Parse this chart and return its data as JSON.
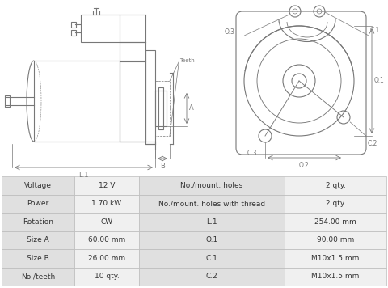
{
  "table_rows": [
    [
      "Voltage",
      "12 V",
      "No./mount. holes",
      "2 qty."
    ],
    [
      "Power",
      "1.70 kW",
      "No./mount. holes with thread",
      "2 qty."
    ],
    [
      "Rotation",
      "CW",
      "L.1",
      "254.00 mm"
    ],
    [
      "Size A",
      "60.00 mm",
      "O.1",
      "90.00 mm"
    ],
    [
      "Size B",
      "26.00 mm",
      "C.1",
      "M10x1.5 mm"
    ],
    [
      "No./teeth",
      "10 qty.",
      "C.2",
      "M10x1.5 mm"
    ]
  ],
  "table_bg_label": "#e0e0e0",
  "table_bg_value": "#f0f0f0",
  "table_border": "#bbbbbb",
  "text_color": "#333333",
  "diagram_color": "#777777",
  "bg_color": "#ffffff"
}
